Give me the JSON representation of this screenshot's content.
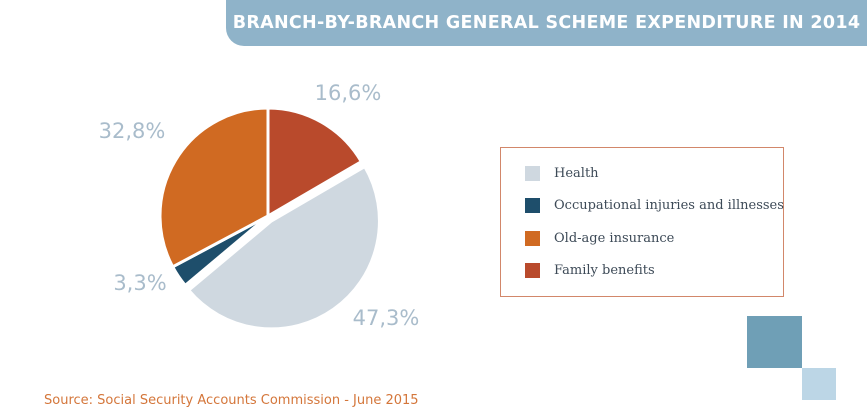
{
  "title": "BRANCH-BY-BRANCH GENERAL SCHEME EXPENDITURE IN 2014",
  "source": "Source: Social Security Accounts Commission - June 2015",
  "chart_data": {
    "type": "pie",
    "title": "BRANCH-BY-BRANCH GENERAL SCHEME EXPENDITURE IN 2014",
    "legend_position": "right",
    "slices": [
      {
        "name": "Family benefits",
        "value": 16.6,
        "label": "16,6%",
        "color": "#b94a2c"
      },
      {
        "name": "Health",
        "value": 47.3,
        "label": "47,3%",
        "color": "#cfd8e0"
      },
      {
        "name": "Occupational injuries and illnesses",
        "value": 3.3,
        "label": "3,3%",
        "color": "#1e4e6b"
      },
      {
        "name": "Old-age insurance",
        "value": 32.8,
        "label": "32,8%",
        "color": "#d06a22"
      }
    ],
    "legend": [
      {
        "label": "Health",
        "color": "#cfd8e0"
      },
      {
        "label": "Occupational injuries and illnesses",
        "color": "#1e4e6b"
      },
      {
        "label": "Old-age insurance",
        "color": "#d06a22"
      },
      {
        "label": "Family benefits",
        "color": "#b94a2c"
      }
    ]
  },
  "decor": {
    "square_dark": "#6f9fb6",
    "square_light": "#bcd6e6"
  }
}
